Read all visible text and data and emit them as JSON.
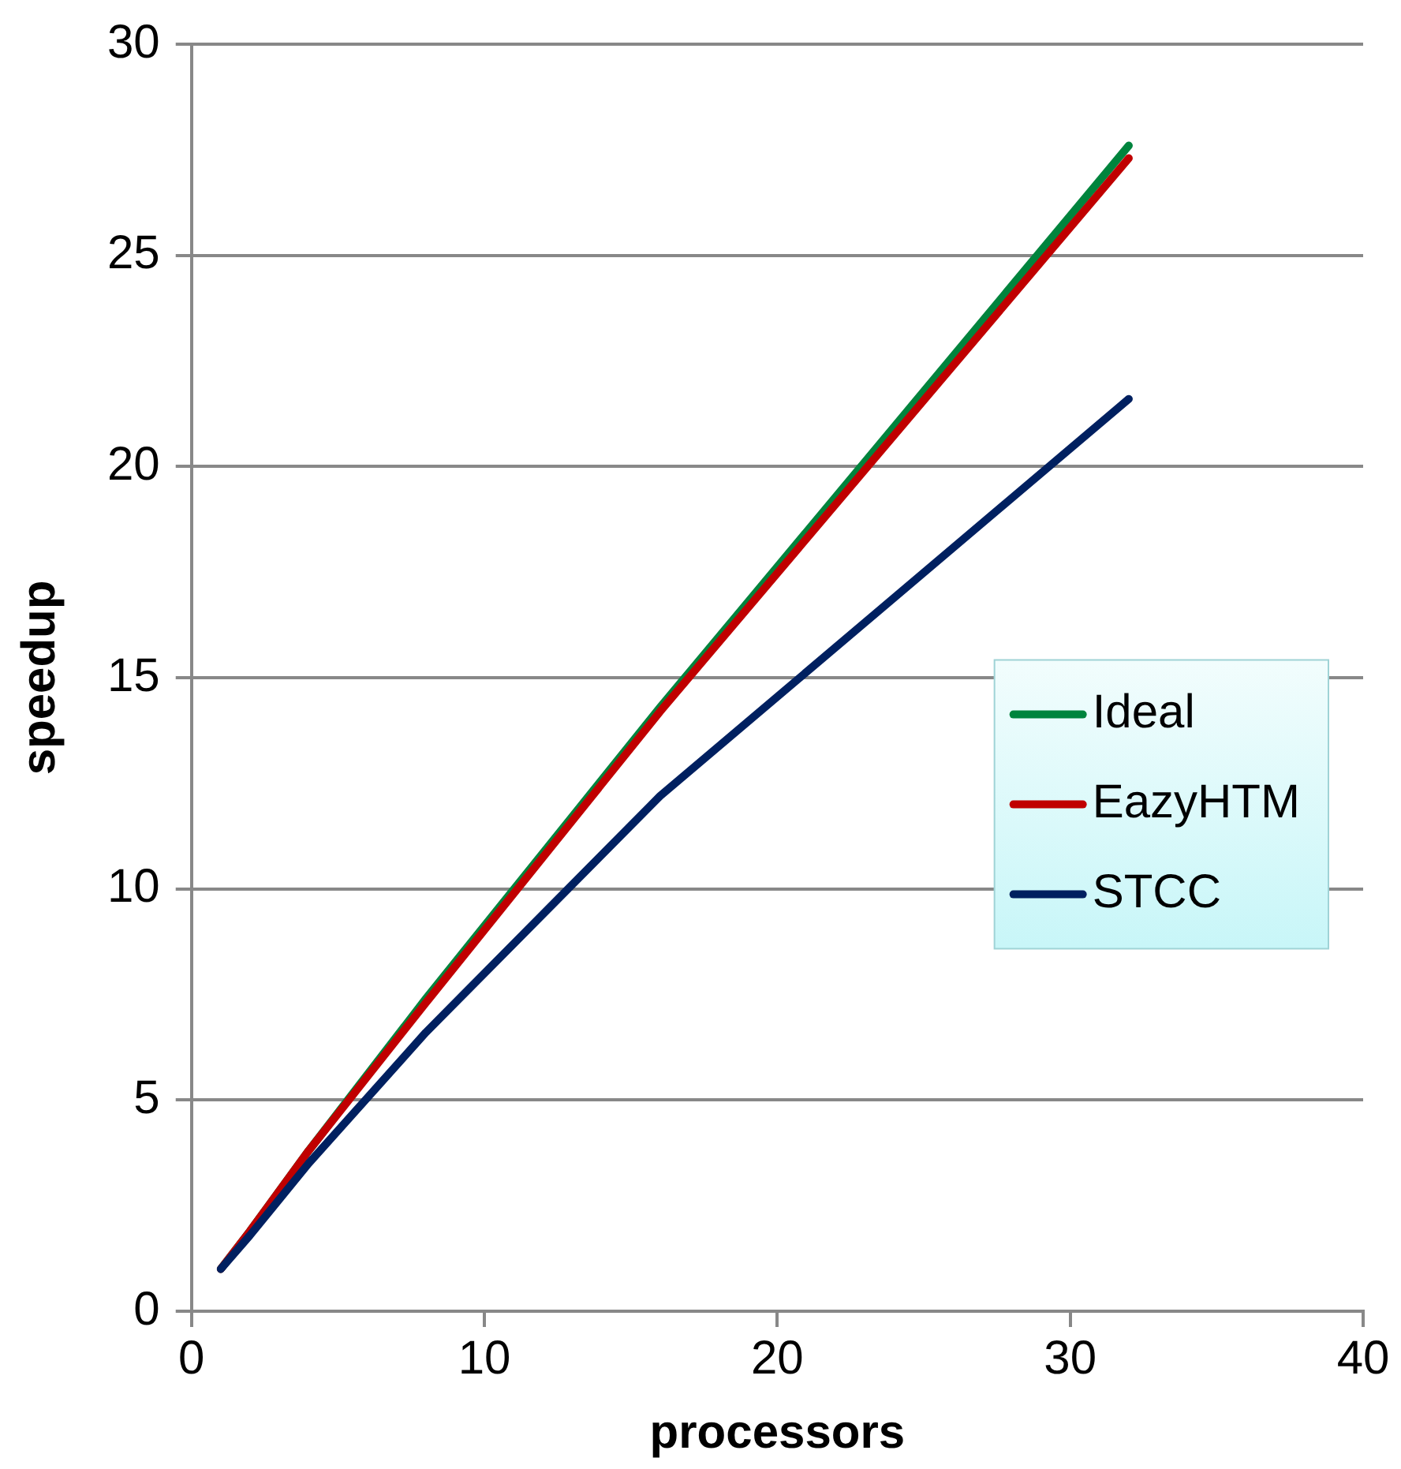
{
  "chart_data": {
    "type": "line",
    "xlabel": "processors",
    "ylabel": "speedup",
    "x": [
      1,
      2,
      4,
      8,
      16,
      32
    ],
    "series": [
      {
        "name": "Ideal",
        "color": "#00843d",
        "values": [
          1,
          1.9,
          3.8,
          7.4,
          14.3,
          27.6
        ]
      },
      {
        "name": "EazyHTM",
        "color": "#c00000",
        "values": [
          1,
          1.9,
          3.8,
          7.3,
          14.2,
          27.3
        ]
      },
      {
        "name": "STCC",
        "color": "#002060",
        "values": [
          1,
          1.8,
          3.5,
          6.6,
          12.2,
          21.6
        ]
      }
    ],
    "xlim": [
      0,
      40
    ],
    "xticks": [
      0,
      10,
      20,
      30,
      40
    ],
    "ylim": [
      0,
      30
    ],
    "yticks": [
      0,
      5,
      10,
      15,
      20,
      25,
      30
    ],
    "grid": "y",
    "legend": "right",
    "marker": "none",
    "line_style": "solid"
  }
}
